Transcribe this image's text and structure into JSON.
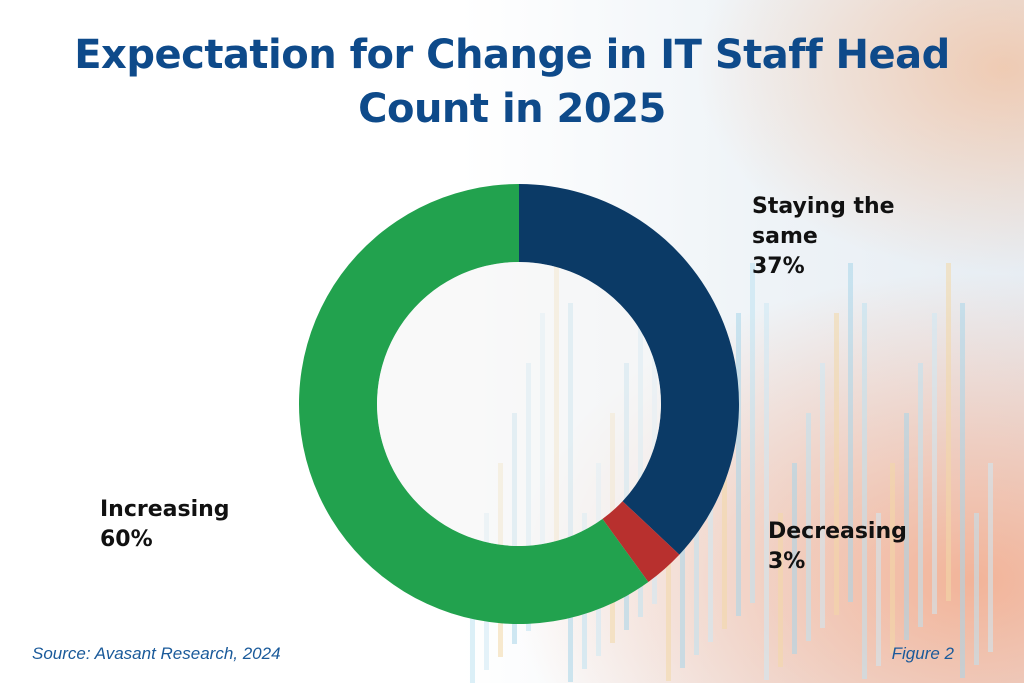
{
  "title_line1": "Expectation for Change in IT Staff Head",
  "title_line2": "Count in 2025",
  "chart_data": {
    "type": "pie",
    "style": "donut",
    "title": "Expectation for Change in IT Staff Head Count in 2025",
    "categories": [
      "Staying the same",
      "Decreasing",
      "Increasing"
    ],
    "values": [
      37,
      3,
      60
    ],
    "unit": "%",
    "labels": [
      {
        "name_lines": [
          "Staying the",
          "same"
        ],
        "value_label": "37%"
      },
      {
        "name_lines": [
          "Decreasing"
        ],
        "value_label": "3%"
      },
      {
        "name_lines": [
          "Increasing"
        ],
        "value_label": "60%"
      }
    ],
    "colors": [
      "#0b3a66",
      "#b8302e",
      "#22a24e"
    ]
  },
  "source": "Source: Avasant Research, 2024",
  "figure_label": "Figure 2",
  "colors": {
    "title": "#0e4a8a",
    "footer": "#1a5a9a"
  }
}
